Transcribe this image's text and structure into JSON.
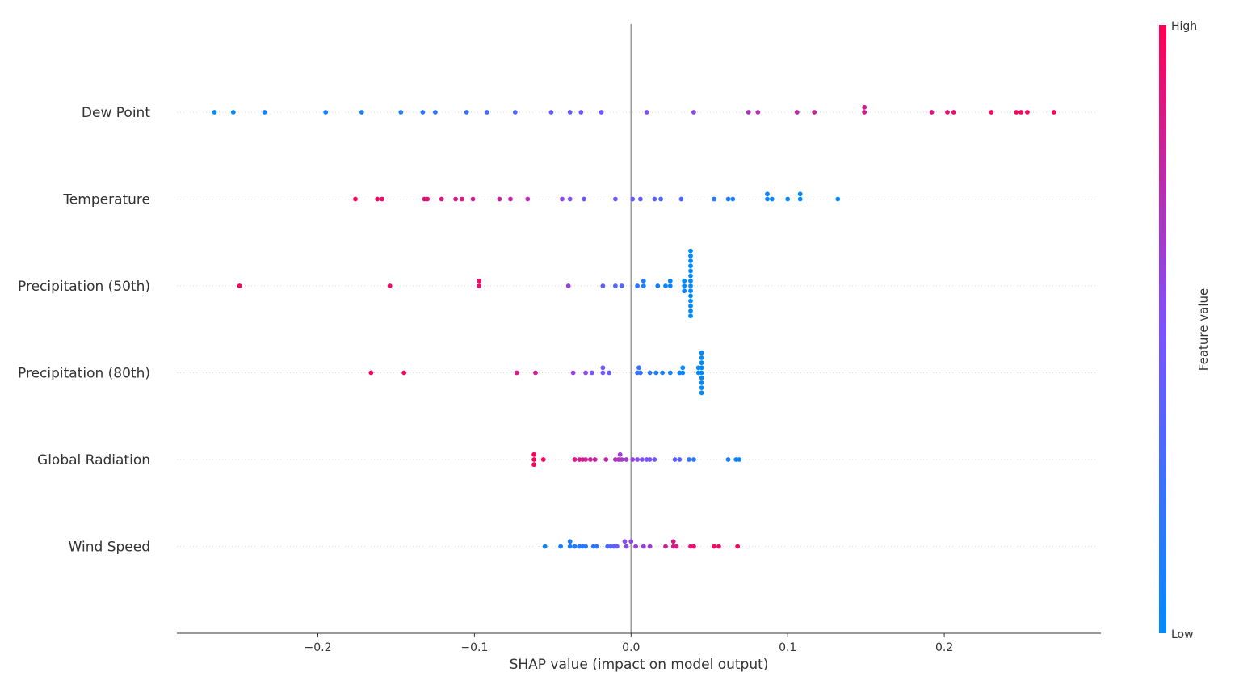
{
  "chart_data": {
    "type": "scatter",
    "title": "",
    "xlabel": "SHAP value (impact on model output)",
    "ylabel": "",
    "xlim": [
      -0.29,
      0.3
    ],
    "xticks": [
      -0.2,
      -0.1,
      0.0,
      0.1,
      0.2
    ],
    "xtick_labels": [
      "−0.2",
      "−0.1",
      "0.0",
      "0.1",
      "0.2"
    ],
    "zero_line": true,
    "grid": false,
    "colorbar": {
      "label": "Feature value",
      "high_label": "High",
      "low_label": "Low",
      "low_color": "#008bfb",
      "mid_color": "#7c52ff",
      "high_color": "#ff0052"
    },
    "features": [
      {
        "name": "Dew Point",
        "points": [
          [
            -0.266,
            0.0,
            0.02
          ],
          [
            -0.254,
            0.0,
            0.03
          ],
          [
            -0.234,
            0.0,
            0.06
          ],
          [
            -0.195,
            0.0,
            0.08
          ],
          [
            -0.172,
            0.0,
            0.1
          ],
          [
            -0.147,
            0.0,
            0.13
          ],
          [
            -0.133,
            0.0,
            0.16
          ],
          [
            -0.125,
            0.0,
            0.18
          ],
          [
            -0.105,
            0.0,
            0.23
          ],
          [
            -0.092,
            0.0,
            0.28
          ],
          [
            -0.074,
            0.0,
            0.33
          ],
          [
            -0.051,
            0.0,
            0.38
          ],
          [
            -0.039,
            0.0,
            0.42
          ],
          [
            -0.032,
            0.0,
            0.44
          ],
          [
            -0.019,
            0.0,
            0.47
          ],
          [
            0.01,
            0.0,
            0.52
          ],
          [
            0.04,
            0.0,
            0.57
          ],
          [
            0.075,
            0.0,
            0.7
          ],
          [
            0.081,
            0.0,
            0.72
          ],
          [
            0.106,
            0.0,
            0.76
          ],
          [
            0.117,
            0.0,
            0.8
          ],
          [
            0.149,
            1.0,
            0.83
          ],
          [
            0.149,
            0.0,
            0.84
          ],
          [
            0.192,
            0.0,
            0.88
          ],
          [
            0.202,
            0.0,
            0.9
          ],
          [
            0.206,
            0.0,
            0.91
          ],
          [
            0.23,
            0.0,
            0.93
          ],
          [
            0.246,
            0.0,
            0.95
          ],
          [
            0.249,
            0.0,
            0.96
          ],
          [
            0.253,
            0.0,
            0.97
          ],
          [
            0.27,
            0.0,
            0.99
          ]
        ]
      },
      {
        "name": "Temperature",
        "points": [
          [
            -0.176,
            0.0,
            0.98
          ],
          [
            -0.162,
            0.0,
            0.95
          ],
          [
            -0.159,
            0.0,
            0.94
          ],
          [
            -0.132,
            0.0,
            0.9
          ],
          [
            -0.13,
            0.0,
            0.89
          ],
          [
            -0.121,
            0.0,
            0.86
          ],
          [
            -0.112,
            0.0,
            0.84
          ],
          [
            -0.108,
            0.0,
            0.83
          ],
          [
            -0.101,
            0.0,
            0.82
          ],
          [
            -0.084,
            0.0,
            0.79
          ],
          [
            -0.077,
            0.0,
            0.77
          ],
          [
            -0.066,
            0.0,
            0.72
          ],
          [
            -0.044,
            0.0,
            0.55
          ],
          [
            -0.039,
            0.0,
            0.52
          ],
          [
            -0.03,
            0.0,
            0.47
          ],
          [
            -0.01,
            0.0,
            0.42
          ],
          [
            0.001,
            0.0,
            0.4
          ],
          [
            0.006,
            0.0,
            0.38
          ],
          [
            0.015,
            0.0,
            0.36
          ],
          [
            0.019,
            0.0,
            0.34
          ],
          [
            0.032,
            0.0,
            0.3
          ],
          [
            0.053,
            0.0,
            0.15
          ],
          [
            0.062,
            0.0,
            0.12
          ],
          [
            0.065,
            0.0,
            0.11
          ],
          [
            0.087,
            1.0,
            0.06
          ],
          [
            0.087,
            0.0,
            0.06
          ],
          [
            0.09,
            0.0,
            0.05
          ],
          [
            0.1,
            0.0,
            0.04
          ],
          [
            0.108,
            1.0,
            0.03
          ],
          [
            0.108,
            0.0,
            0.03
          ],
          [
            0.132,
            0.0,
            0.01
          ]
        ]
      },
      {
        "name": "Precipitation (50th)",
        "points": [
          [
            -0.25,
            0.0,
            0.99
          ],
          [
            -0.154,
            0.0,
            0.95
          ],
          [
            -0.097,
            1.0,
            0.92
          ],
          [
            -0.097,
            0.0,
            0.92
          ],
          [
            -0.04,
            0.0,
            0.6
          ],
          [
            -0.018,
            0.0,
            0.4
          ],
          [
            -0.01,
            0.0,
            0.35
          ],
          [
            -0.006,
            0.0,
            0.33
          ],
          [
            0.004,
            0.0,
            0.2
          ],
          [
            0.008,
            1.0,
            0.1
          ],
          [
            0.008,
            0.0,
            0.1
          ],
          [
            0.017,
            0.0,
            0.08
          ],
          [
            0.022,
            0.0,
            0.06
          ],
          [
            0.025,
            1.0,
            0.05
          ],
          [
            0.025,
            0.0,
            0.05
          ],
          [
            0.034,
            1.0,
            0.03
          ],
          [
            0.034,
            0.0,
            0.03
          ],
          [
            0.034,
            -1.0,
            0.03
          ],
          [
            0.038,
            7.0,
            0.01
          ],
          [
            0.038,
            6.0,
            0.01
          ],
          [
            0.038,
            5.0,
            0.01
          ],
          [
            0.038,
            4.0,
            0.01
          ],
          [
            0.038,
            3.0,
            0.01
          ],
          [
            0.038,
            2.0,
            0.01
          ],
          [
            0.038,
            1.0,
            0.01
          ],
          [
            0.038,
            0.0,
            0.01
          ],
          [
            0.038,
            -1.0,
            0.01
          ],
          [
            0.038,
            -2.0,
            0.01
          ],
          [
            0.038,
            -3.0,
            0.01
          ],
          [
            0.038,
            -4.0,
            0.01
          ],
          [
            0.038,
            -5.0,
            0.01
          ],
          [
            0.038,
            -6.0,
            0.01
          ]
        ]
      },
      {
        "name": "Precipitation (80th)",
        "points": [
          [
            -0.166,
            0.0,
            0.97
          ],
          [
            -0.145,
            0.0,
            0.95
          ],
          [
            -0.073,
            0.0,
            0.85
          ],
          [
            -0.061,
            0.0,
            0.82
          ],
          [
            -0.037,
            0.0,
            0.6
          ],
          [
            -0.029,
            0.0,
            0.55
          ],
          [
            -0.025,
            0.0,
            0.5
          ],
          [
            -0.018,
            1.0,
            0.45
          ],
          [
            -0.018,
            0.0,
            0.45
          ],
          [
            -0.014,
            0.0,
            0.42
          ],
          [
            0.004,
            0.0,
            0.25
          ],
          [
            0.005,
            1.0,
            0.2
          ],
          [
            0.006,
            0.0,
            0.2
          ],
          [
            0.012,
            0.0,
            0.15
          ],
          [
            0.016,
            0.0,
            0.12
          ],
          [
            0.02,
            0.0,
            0.1
          ],
          [
            0.025,
            0.0,
            0.08
          ],
          [
            0.031,
            0.0,
            0.06
          ],
          [
            0.033,
            1.0,
            0.05
          ],
          [
            0.033,
            0.0,
            0.05
          ],
          [
            0.043,
            1.0,
            0.03
          ],
          [
            0.043,
            0.0,
            0.03
          ],
          [
            0.045,
            4.0,
            0.01
          ],
          [
            0.045,
            3.0,
            0.01
          ],
          [
            0.045,
            2.0,
            0.01
          ],
          [
            0.045,
            1.0,
            0.01
          ],
          [
            0.045,
            0.0,
            0.01
          ],
          [
            0.045,
            -1.0,
            0.01
          ],
          [
            0.045,
            -2.0,
            0.01
          ],
          [
            0.045,
            -3.0,
            0.01
          ],
          [
            0.045,
            -4.0,
            0.01
          ],
          [
            0.045,
            2.0,
            0.02
          ]
        ]
      },
      {
        "name": "Global Radiation",
        "points": [
          [
            -0.062,
            1.0,
            0.98
          ],
          [
            -0.062,
            0.0,
            0.98
          ],
          [
            -0.062,
            -1.0,
            0.98
          ],
          [
            -0.056,
            0.0,
            0.95
          ],
          [
            -0.036,
            0.0,
            0.85
          ],
          [
            -0.033,
            0.0,
            0.83
          ],
          [
            -0.031,
            0.0,
            0.82
          ],
          [
            -0.029,
            0.0,
            0.81
          ],
          [
            -0.026,
            0.0,
            0.8
          ],
          [
            -0.023,
            0.0,
            0.78
          ],
          [
            -0.016,
            0.0,
            0.75
          ],
          [
            -0.01,
            0.0,
            0.7
          ],
          [
            -0.007,
            1.0,
            0.62
          ],
          [
            -0.008,
            0.0,
            0.68
          ],
          [
            -0.006,
            0.0,
            0.66
          ],
          [
            -0.003,
            0.0,
            0.64
          ],
          [
            0.001,
            0.0,
            0.6
          ],
          [
            0.004,
            0.0,
            0.55
          ],
          [
            0.007,
            0.0,
            0.5
          ],
          [
            0.01,
            0.0,
            0.5
          ],
          [
            0.012,
            0.0,
            0.48
          ],
          [
            0.015,
            0.0,
            0.45
          ],
          [
            0.028,
            0.0,
            0.4
          ],
          [
            0.031,
            0.0,
            0.35
          ],
          [
            0.037,
            0.0,
            0.2
          ],
          [
            0.04,
            0.0,
            0.15
          ],
          [
            0.062,
            0.0,
            0.08
          ],
          [
            0.067,
            0.0,
            0.05
          ],
          [
            0.069,
            0.0,
            0.04
          ]
        ]
      },
      {
        "name": "Wind Speed",
        "points": [
          [
            -0.055,
            0.0,
            0.05
          ],
          [
            -0.045,
            0.0,
            0.08
          ],
          [
            -0.039,
            1.0,
            0.1
          ],
          [
            -0.039,
            0.0,
            0.12
          ],
          [
            -0.036,
            0.0,
            0.13
          ],
          [
            -0.033,
            0.0,
            0.14
          ],
          [
            -0.031,
            0.0,
            0.15
          ],
          [
            -0.029,
            0.0,
            0.16
          ],
          [
            -0.024,
            0.0,
            0.18
          ],
          [
            -0.022,
            0.0,
            0.19
          ],
          [
            -0.015,
            0.0,
            0.3
          ],
          [
            -0.013,
            0.0,
            0.35
          ],
          [
            -0.011,
            0.0,
            0.38
          ],
          [
            -0.009,
            0.0,
            0.42
          ],
          [
            -0.004,
            1.0,
            0.55
          ],
          [
            -0.003,
            0.0,
            0.56
          ],
          [
            0.0,
            1.0,
            0.58
          ],
          [
            0.003,
            0.0,
            0.6
          ],
          [
            0.008,
            0.0,
            0.62
          ],
          [
            0.012,
            0.0,
            0.64
          ],
          [
            0.022,
            0.0,
            0.78
          ],
          [
            0.027,
            1.0,
            0.85
          ],
          [
            0.027,
            0.0,
            0.82
          ],
          [
            0.029,
            0.0,
            0.84
          ],
          [
            0.038,
            0.0,
            0.88
          ],
          [
            0.04,
            0.0,
            0.9
          ],
          [
            0.053,
            0.0,
            0.92
          ],
          [
            0.056,
            0.0,
            0.93
          ],
          [
            0.068,
            0.0,
            0.96
          ]
        ]
      }
    ]
  }
}
